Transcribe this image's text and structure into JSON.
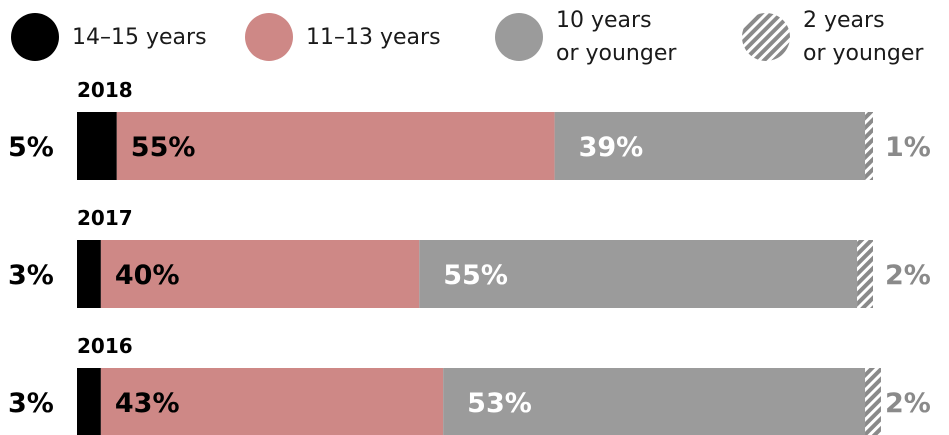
{
  "chart_data": {
    "type": "bar",
    "orientation": "horizontal",
    "stacked": true,
    "xlim": [
      0,
      100
    ],
    "grid": false,
    "legend_position": "top",
    "categories": [
      "2018",
      "2017",
      "2016"
    ],
    "series": [
      {
        "name": "14–15 years",
        "values": [
          5,
          3,
          3
        ],
        "color": "#000000",
        "pattern": "solid",
        "labels": [
          "5%",
          "3%",
          "3%"
        ],
        "label_position": "outside-left"
      },
      {
        "name": "11–13 years",
        "values": [
          55,
          40,
          43
        ],
        "color": "#ce8886",
        "pattern": "solid",
        "labels": [
          "55%",
          "40%",
          "43%"
        ],
        "label_position": "inside-left"
      },
      {
        "name": [
          "10 years",
          "or younger"
        ],
        "values": [
          39,
          55,
          53
        ],
        "color": "#9b9b9b",
        "pattern": "solid",
        "labels": [
          "39%",
          "55%",
          "53%"
        ],
        "label_position": "inside-left"
      },
      {
        "name": [
          "2 years",
          "or younger"
        ],
        "values": [
          1,
          2,
          2
        ],
        "color": "#8a8a8a",
        "pattern": "hatched",
        "labels": [
          "1%",
          "2%",
          "2%"
        ],
        "label_position": "outside-right"
      }
    ]
  }
}
